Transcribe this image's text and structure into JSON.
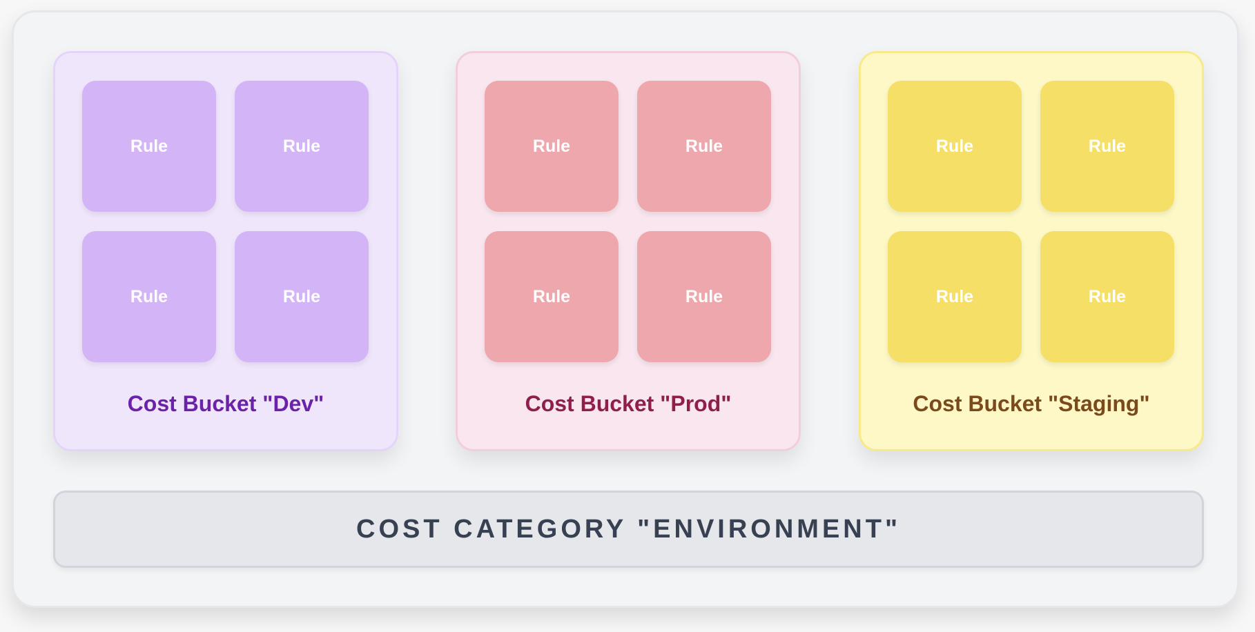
{
  "buckets": [
    {
      "label": "Cost Bucket \"Dev\"",
      "rules": [
        "Rule",
        "Rule",
        "Rule",
        "Rule"
      ],
      "colors": {
        "bg": "#f0e6fc",
        "border": "#e4d4fa",
        "rule": "#d3b5f7",
        "text": "#6b21a8"
      }
    },
    {
      "label": "Cost Bucket \"Prod\"",
      "rules": [
        "Rule",
        "Rule",
        "Rule",
        "Rule"
      ],
      "colors": {
        "bg": "#f9e6ef",
        "border": "#f2cde0",
        "rule": "#eea7ac",
        "text": "#8f1f4a"
      }
    },
    {
      "label": "Cost Bucket \"Staging\"",
      "rules": [
        "Rule",
        "Rule",
        "Rule",
        "Rule"
      ],
      "colors": {
        "bg": "#fdf8c6",
        "border": "#f8e98a",
        "rule": "#f6df66",
        "text": "#7b4a1c"
      }
    }
  ],
  "category": {
    "label": "COST CATEGORY \"ENVIRONMENT\""
  }
}
